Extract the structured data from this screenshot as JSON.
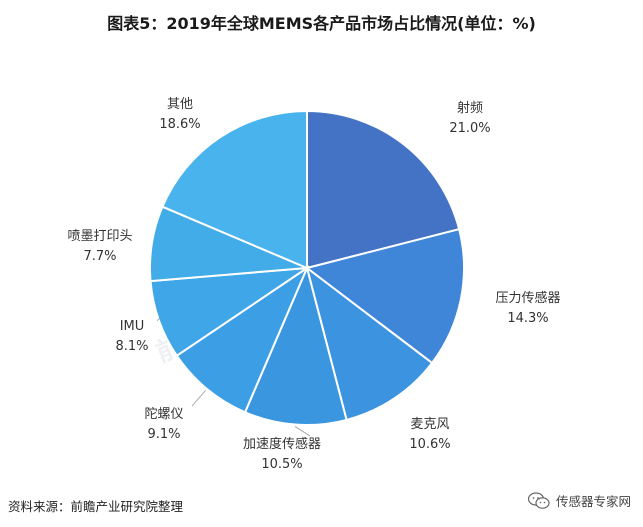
{
  "title": "图表5：2019年全球MEMS各产品市场占比情况(单位：%)",
  "source": "资料来源：前瞻产业研究院整理",
  "footer_brand": "传感器专家网",
  "watermark": "前瞻产业研究院",
  "colors": {
    "射频": "#4472c4",
    "压力传感器": "#3f86d8",
    "麦克风": "#3c93e0",
    "加速度传感器": "#3a97df",
    "陀螺仪": "#3c9ee4",
    "IMU": "#3fa6e7",
    "喷墨打印头": "#42ace9",
    "其他": "#48b3ed"
  },
  "chart_data": {
    "type": "pie",
    "title": "图表5：2019年全球MEMS各产品市场占比情况(单位：%)",
    "unit": "%",
    "categories": [
      "射频",
      "压力传感器",
      "麦克风",
      "加速度传感器",
      "陀螺仪",
      "IMU",
      "喷墨打印头",
      "其他"
    ],
    "values": [
      21.0,
      14.3,
      10.6,
      10.5,
      9.1,
      8.1,
      7.7,
      18.6
    ],
    "value_labels": [
      "21.0%",
      "14.3%",
      "10.6%",
      "10.5%",
      "9.1%",
      "8.1%",
      "7.7%",
      "18.6%"
    ],
    "start": "12 o'clock",
    "direction": "clockwise"
  }
}
